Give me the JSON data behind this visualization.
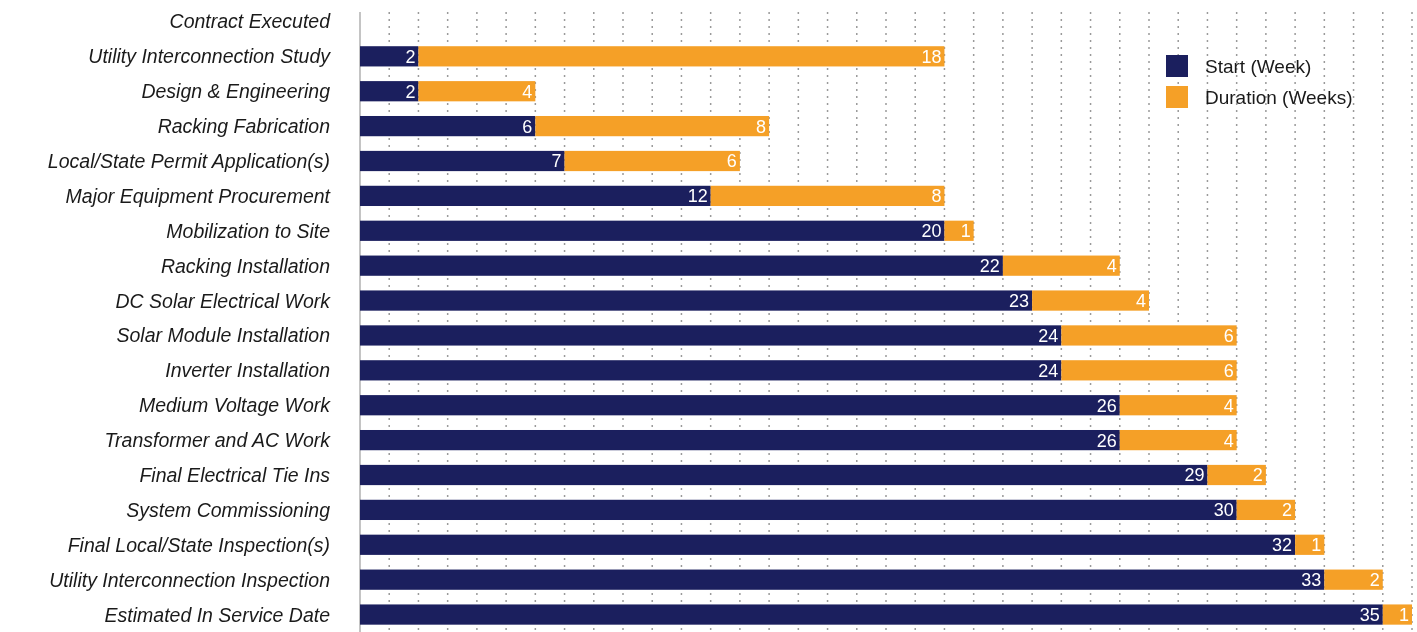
{
  "chart_data": {
    "type": "bar",
    "orientation": "horizontal",
    "stacked": true,
    "data_labels": true,
    "grid": "x",
    "legend": "top right",
    "tick_labels": "y",
    "categories": [
      "Contract Executed",
      "Utility Interconnection Study",
      "Design & Engineering",
      "Racking Fabrication",
      "Local/State Permit Application(s)",
      "Major Equipment Procurement",
      "Mobilization to Site",
      "Racking Installation",
      "DC Solar Electrical Work",
      "Solar Module Installation",
      "Inverter Installation",
      "Medium Voltage Work",
      "Transformer and AC Work",
      "Final Electrical Tie Ins",
      "System Commissioning",
      "Final Local/State Inspection(s)",
      "Utility Interconnection Inspection",
      "Estimated In Service Date"
    ],
    "xlim": [
      0,
      36
    ],
    "xticks": [
      {
        "value": 0,
        "label": null
      },
      {
        "value": 1,
        "label": null
      },
      {
        "value": 2,
        "label": null
      },
      {
        "value": 3,
        "label": null
      },
      {
        "value": 4,
        "label": null
      },
      {
        "value": 5,
        "label": null
      },
      {
        "value": 6,
        "label": null
      },
      {
        "value": 7,
        "label": null
      },
      {
        "value": 8,
        "label": null
      },
      {
        "value": 9,
        "label": null
      },
      {
        "value": 10,
        "label": null
      },
      {
        "value": 11,
        "label": null
      },
      {
        "value": 12,
        "label": null
      },
      {
        "value": 13,
        "label": null
      },
      {
        "value": 14,
        "label": null
      },
      {
        "value": 15,
        "label": null
      },
      {
        "value": 16,
        "label": null
      },
      {
        "value": 17,
        "label": null
      },
      {
        "value": 18,
        "label": null
      },
      {
        "value": 19,
        "label": null
      },
      {
        "value": 20,
        "label": null
      },
      {
        "value": 21,
        "label": null
      },
      {
        "value": 22,
        "label": null
      },
      {
        "value": 23,
        "label": null
      },
      {
        "value": 24,
        "label": null
      },
      {
        "value": 25,
        "label": null
      },
      {
        "value": 26,
        "label": null
      },
      {
        "value": 27,
        "label": null
      },
      {
        "value": 28,
        "label": null
      },
      {
        "value": 29,
        "label": null
      },
      {
        "value": 30,
        "label": null
      },
      {
        "value": 31,
        "label": null
      },
      {
        "value": 32,
        "label": null
      },
      {
        "value": 33,
        "label": null
      },
      {
        "value": 34,
        "label": null
      },
      {
        "value": 35,
        "label": null
      },
      {
        "value": 36,
        "label": null
      }
    ],
    "series": [
      {
        "name": "Start (Week)",
        "color": "#1b1f5e",
        "values": [
          null,
          2,
          2,
          6,
          7,
          12,
          20,
          22,
          23,
          24,
          24,
          26,
          26,
          29,
          30,
          32,
          33,
          35
        ]
      },
      {
        "name": "Duration (Weeks)",
        "color": "#f5a027",
        "values": [
          null,
          18,
          4,
          8,
          6,
          8,
          1,
          4,
          4,
          6,
          6,
          4,
          4,
          2,
          2,
          1,
          2,
          1
        ]
      }
    ]
  }
}
